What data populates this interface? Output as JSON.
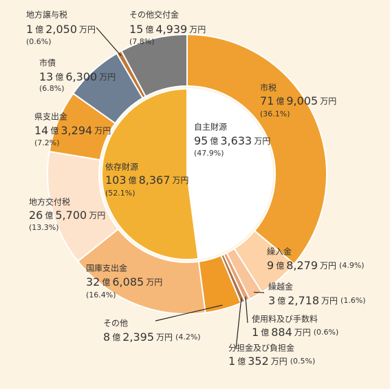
{
  "chart_data": [
    {
      "type": "pie",
      "categories": [
        "自主財源",
        "依存財源"
      ],
      "values": [
        47.9,
        52.1
      ],
      "value_labels": [
        "(47.9%)",
        "(52.1%)"
      ],
      "amount_labels": [
        "95 億 3,633 万円",
        "103 億 8,367 万円"
      ],
      "colors": [
        "#ffffff",
        "#f3b133"
      ]
    },
    {
      "type": "donut",
      "categories": [
        "市税",
        "繰入金",
        "繰越金",
        "使用料及び手数料",
        "分担金及び負担金",
        "その他",
        "国庫支出金",
        "地方交付税",
        "県支出金",
        "市債",
        "地方譲与税",
        "その他交付金"
      ],
      "values": [
        36.1,
        4.9,
        1.6,
        0.6,
        0.5,
        4.2,
        16.4,
        13.3,
        7.2,
        6.8,
        0.6,
        7.8
      ],
      "value_labels": [
        "(36.1%)",
        "(4.9%)",
        "(1.6%)",
        "(0.6%)",
        "(0.5%)",
        "(4.2%)",
        "(16.4%)",
        "(13.3%)",
        "(7.2%)",
        "(6.8%)",
        "(0.6%)",
        "(7.8%)"
      ],
      "amount_labels": [
        "71 億 9,005 万円",
        "9 億 8,279 万円",
        "3 億 2,718 万円",
        "1 億 884 万円",
        "1 億 352 万円",
        "8 億 2,395 万円",
        "32 億 6,085 万円",
        "26 億 5,700 万円",
        "14 億 3,294 万円",
        "13 億 6,300 万円",
        "1 億 2,050 万円",
        "15 億 4,939 万円"
      ],
      "colors": [
        "#f0a030",
        "#fcd2a6",
        "#f8c49a",
        "#e8a070",
        "#a8744c",
        "#f09a28",
        "#f6b878",
        "#fde3cc",
        "#f0a030",
        "#6e7f94",
        "#c07838",
        "#7c7c7c"
      ]
    }
  ]
}
